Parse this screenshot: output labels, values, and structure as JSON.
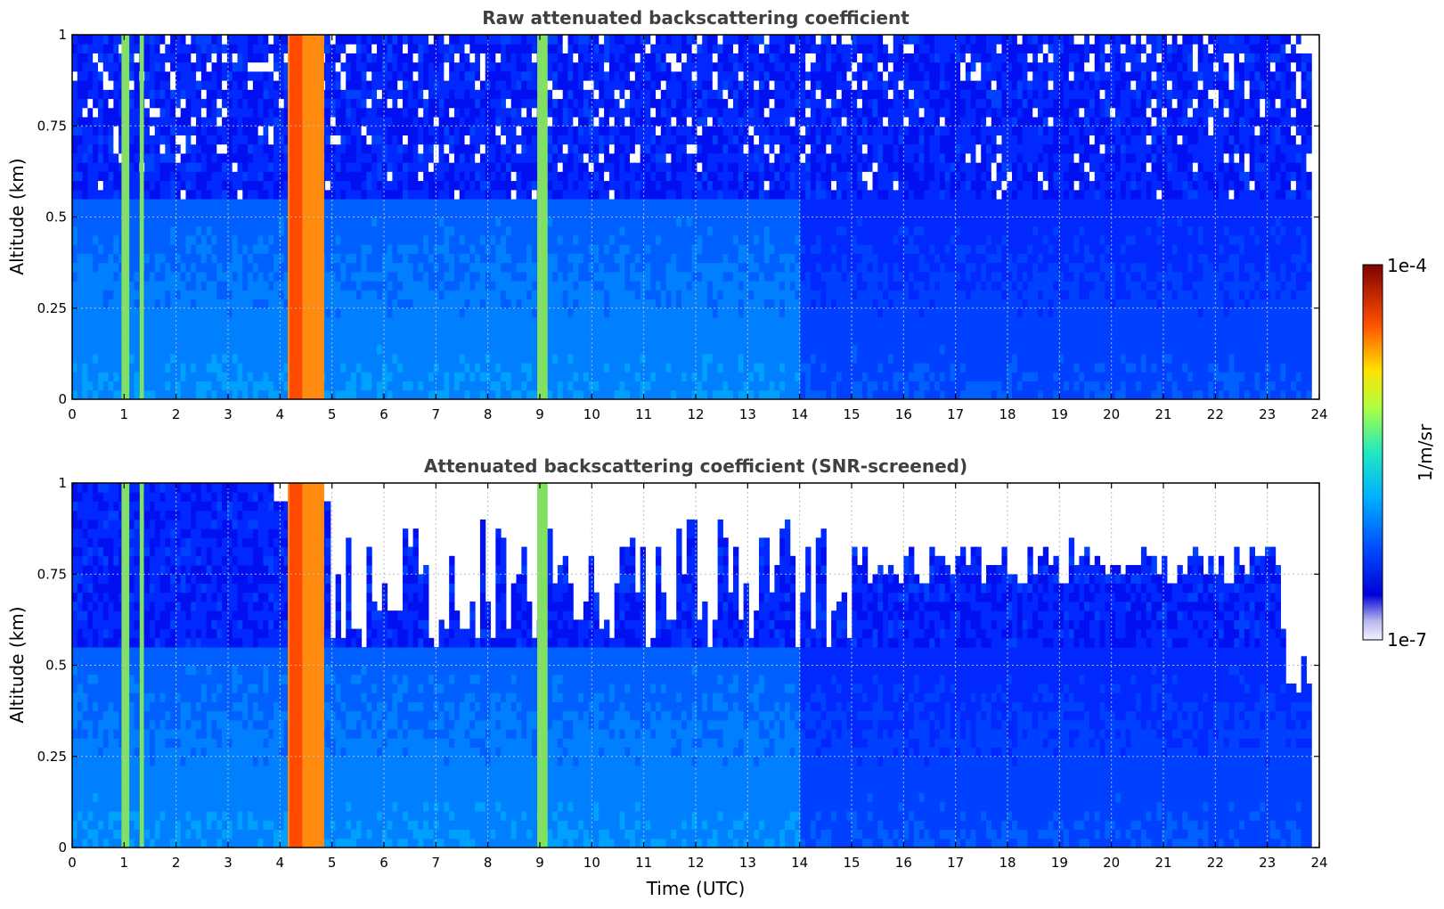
{
  "chart_data": [
    {
      "type": "heatmap",
      "title": "Raw attenuated backscattering coefficient",
      "xlabel": "",
      "ylabel": "Altitude (km)",
      "xlim": [
        0,
        24
      ],
      "ylim": [
        0,
        1
      ],
      "x_ticks": [
        "0",
        "1",
        "2",
        "3",
        "4",
        "5",
        "6",
        "7",
        "8",
        "9",
        "10",
        "11",
        "12",
        "13",
        "14",
        "15",
        "16",
        "17",
        "18",
        "19",
        "20",
        "21",
        "22",
        "23",
        "24"
      ],
      "y_ticks": [
        "0",
        "0.25",
        "0.5",
        "0.75",
        "1"
      ],
      "grid": true,
      "screened": false,
      "features": [
        {
          "t_start": 4.15,
          "t_end": 4.85,
          "alt_top": 1.0,
          "level": "high"
        },
        {
          "t_start": 0.95,
          "t_end": 1.1,
          "alt_top": 1.0,
          "level": "medium"
        },
        {
          "t_start": 1.3,
          "t_end": 1.38,
          "alt_top": 1.0,
          "level": "medium"
        },
        {
          "t_start": 8.95,
          "t_end": 9.15,
          "alt_top": 1.0,
          "level": "medium"
        }
      ]
    },
    {
      "type": "heatmap",
      "title": "Attenuated backscattering coefficient (SNR-screened)",
      "xlabel": "Time (UTC)",
      "ylabel": "Altitude (km)",
      "xlim": [
        0,
        24
      ],
      "ylim": [
        0,
        1
      ],
      "x_ticks": [
        "0",
        "1",
        "2",
        "3",
        "4",
        "5",
        "6",
        "7",
        "8",
        "9",
        "10",
        "11",
        "12",
        "13",
        "14",
        "15",
        "16",
        "17",
        "18",
        "19",
        "20",
        "21",
        "22",
        "23",
        "24"
      ],
      "y_ticks": [
        "0",
        "0.25",
        "0.5",
        "0.75",
        "1"
      ],
      "grid": true,
      "screened": true,
      "features": [
        {
          "t_start": 4.15,
          "t_end": 4.85,
          "alt_top": 1.0,
          "level": "high"
        },
        {
          "t_start": 0.95,
          "t_end": 1.1,
          "alt_top": 1.0,
          "level": "medium"
        },
        {
          "t_start": 1.3,
          "t_end": 1.38,
          "alt_top": 1.0,
          "level": "medium"
        },
        {
          "t_start": 8.95,
          "t_end": 9.15,
          "alt_top": 1.0,
          "level": "medium"
        }
      ]
    }
  ],
  "colorbar": {
    "label": "1/m/sr",
    "max_label": "1e-4",
    "min_label": "1e-7",
    "colormap": "jet"
  }
}
